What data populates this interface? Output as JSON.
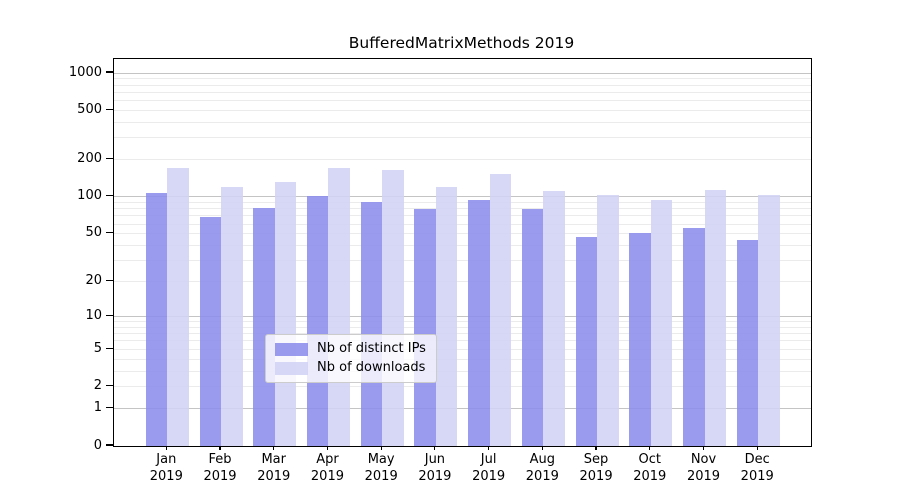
{
  "title": "BufferedMatrixMethods 2019",
  "colors": {
    "ips_fill": "rgba(140,140,236,0.88)",
    "downloads_fill": "rgba(210,210,245,0.88)",
    "grid_major": "#c4c4c4",
    "grid_minor": "#ebebeb",
    "spine": "#000000"
  },
  "legend": {
    "position": "lower center",
    "items": [
      {
        "label": "Nb of distinct IPs",
        "series": "ips"
      },
      {
        "label": "Nb of downloads",
        "series": "downloads"
      }
    ]
  },
  "chart_data": {
    "type": "bar",
    "title": "BufferedMatrixMethods 2019",
    "xlabel": "",
    "ylabel": "",
    "yscale": "log1p",
    "ylim": [
      0,
      1348
    ],
    "grid": "on",
    "y_ticks": [
      1000,
      500,
      200,
      100,
      50,
      20,
      10,
      5,
      2,
      1,
      0
    ],
    "categories": [
      "Jan 2019",
      "Feb 2019",
      "Mar 2019",
      "Apr 2019",
      "May 2019",
      "Jun 2019",
      "Jul 2019",
      "Aug 2019",
      "Sep 2019",
      "Oct 2019",
      "Nov 2019",
      "Dec 2019"
    ],
    "series": [
      {
        "name": "Nb of distinct IPs",
        "values": [
          107,
          68,
          81,
          102,
          90,
          79,
          95,
          80,
          47,
          51,
          56,
          44
        ]
      },
      {
        "name": "Nb of downloads",
        "values": [
          170,
          120,
          131,
          170,
          166,
          120,
          154,
          112,
          104,
          94,
          113,
          104
        ]
      }
    ]
  }
}
